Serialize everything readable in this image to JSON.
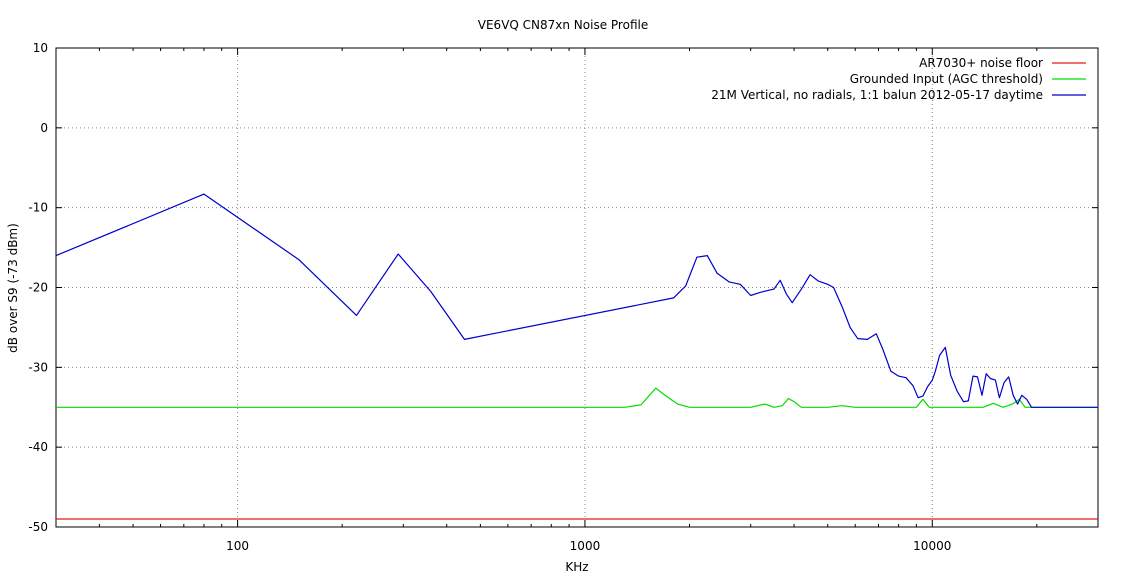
{
  "chart_data": {
    "type": "line",
    "title": "VE6VQ CN87xn Noise Profile",
    "xlabel": "KHz",
    "ylabel": "dB over S9 (-73 dBm)",
    "x_scale": "log",
    "xlim": [
      30,
      30000
    ],
    "ylim": [
      -50,
      10
    ],
    "x_ticks": [
      100,
      1000,
      10000
    ],
    "y_ticks": [
      10,
      0,
      -10,
      -20,
      -30,
      -40,
      -50
    ],
    "grid": true,
    "legend_position": "top-right",
    "series": [
      {
        "name": "AR7030+ noise floor",
        "color": "#e41a1c",
        "points": [
          [
            30,
            -49
          ],
          [
            30000,
            -49
          ]
        ]
      },
      {
        "name": "Grounded Input (AGC threshold)",
        "color": "#00dd00",
        "points": [
          [
            30,
            -35
          ],
          [
            1300,
            -35
          ],
          [
            1450,
            -34.7
          ],
          [
            1600,
            -32.6
          ],
          [
            1700,
            -33.5
          ],
          [
            1850,
            -34.6
          ],
          [
            2000,
            -35
          ],
          [
            3000,
            -35
          ],
          [
            3300,
            -34.6
          ],
          [
            3500,
            -35
          ],
          [
            3700,
            -34.8
          ],
          [
            3850,
            -33.9
          ],
          [
            4000,
            -34.3
          ],
          [
            4200,
            -35
          ],
          [
            5000,
            -35
          ],
          [
            5500,
            -34.8
          ],
          [
            6000,
            -35
          ],
          [
            9000,
            -35
          ],
          [
            9400,
            -34
          ],
          [
            9800,
            -35
          ],
          [
            14000,
            -35
          ],
          [
            15000,
            -34.5
          ],
          [
            16000,
            -35
          ],
          [
            17000,
            -34.6
          ],
          [
            17800,
            -34
          ],
          [
            18500,
            -35
          ],
          [
            30000,
            -35
          ]
        ]
      },
      {
        "name": "21M Vertical, no radials, 1:1 balun 2012-05-17 daytime",
        "color": "#0000cc",
        "points": [
          [
            30,
            -16
          ],
          [
            80,
            -8.3
          ],
          [
            150,
            -16.5
          ],
          [
            220,
            -23.5
          ],
          [
            290,
            -15.8
          ],
          [
            360,
            -20.5
          ],
          [
            450,
            -26.5
          ],
          [
            1800,
            -21.3
          ],
          [
            1950,
            -19.8
          ],
          [
            2100,
            -16.2
          ],
          [
            2250,
            -16
          ],
          [
            2400,
            -18.2
          ],
          [
            2600,
            -19.3
          ],
          [
            2800,
            -19.6
          ],
          [
            3000,
            -21
          ],
          [
            3200,
            -20.6
          ],
          [
            3500,
            -20.2
          ],
          [
            3650,
            -19.1
          ],
          [
            3800,
            -20.8
          ],
          [
            3950,
            -21.9
          ],
          [
            4200,
            -20.2
          ],
          [
            4450,
            -18.4
          ],
          [
            4700,
            -19.2
          ],
          [
            5000,
            -19.6
          ],
          [
            5200,
            -20
          ],
          [
            5500,
            -22.4
          ],
          [
            5800,
            -25
          ],
          [
            6100,
            -26.4
          ],
          [
            6500,
            -26.5
          ],
          [
            6900,
            -25.8
          ],
          [
            7200,
            -27.7
          ],
          [
            7600,
            -30.5
          ],
          [
            8000,
            -31.1
          ],
          [
            8400,
            -31.3
          ],
          [
            8800,
            -32.3
          ],
          [
            9100,
            -33.8
          ],
          [
            9400,
            -33.6
          ],
          [
            9700,
            -32.4
          ],
          [
            10000,
            -31.6
          ],
          [
            10200,
            -30.5
          ],
          [
            10500,
            -28.5
          ],
          [
            10900,
            -27.5
          ],
          [
            11300,
            -31
          ],
          [
            11800,
            -33
          ],
          [
            12300,
            -34.3
          ],
          [
            12700,
            -34.2
          ],
          [
            13100,
            -31.1
          ],
          [
            13500,
            -31.2
          ],
          [
            13900,
            -33.5
          ],
          [
            14300,
            -30.8
          ],
          [
            14700,
            -31.4
          ],
          [
            15200,
            -31.6
          ],
          [
            15600,
            -33.8
          ],
          [
            16100,
            -31.9
          ],
          [
            16600,
            -31.2
          ],
          [
            17100,
            -33.5
          ],
          [
            17600,
            -34.6
          ],
          [
            18100,
            -33.5
          ],
          [
            18700,
            -34
          ],
          [
            19300,
            -35
          ],
          [
            30000,
            -35
          ]
        ]
      }
    ]
  }
}
